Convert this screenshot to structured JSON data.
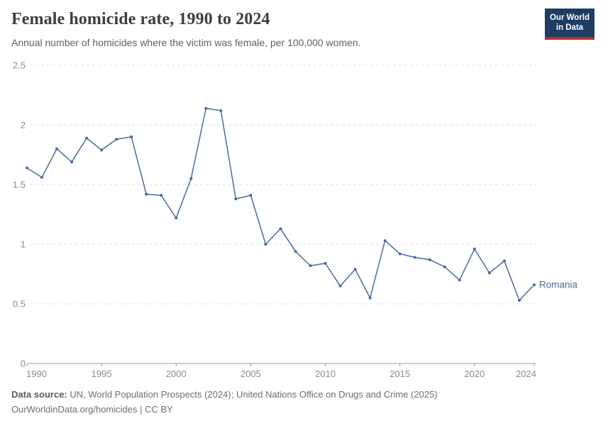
{
  "header": {
    "title": "Female homicide rate, 1990 to 2024",
    "subtitle": "Annual number of homicides where the victim was female, per 100,000 women.",
    "logo": {
      "line1": "Our World",
      "line2": "in Data",
      "bg_color": "#1d3d63",
      "bar_color": "#c8252c"
    }
  },
  "chart_data": {
    "type": "line",
    "title": "Female homicide rate, 1990 to 2024",
    "xlabel": "",
    "ylabel": "",
    "xlim": [
      1990,
      2024
    ],
    "ylim": [
      0,
      2.5
    ],
    "xticks": [
      1990,
      1995,
      2000,
      2005,
      2010,
      2015,
      2020,
      2024
    ],
    "yticks": [
      0,
      0.5,
      1,
      1.5,
      2,
      2.5
    ],
    "grid": "horizontal-dashed",
    "legend_position": "end-of-line-label",
    "series": [
      {
        "name": "Romania",
        "color": "#4C6A9C",
        "x": [
          1990,
          1991,
          1992,
          1993,
          1994,
          1995,
          1996,
          1997,
          1998,
          1999,
          2000,
          2001,
          2002,
          2003,
          2004,
          2005,
          2006,
          2007,
          2008,
          2009,
          2010,
          2011,
          2012,
          2013,
          2014,
          2015,
          2016,
          2017,
          2018,
          2019,
          2020,
          2021,
          2022,
          2023,
          2024
        ],
        "values": [
          1.64,
          1.56,
          1.8,
          1.69,
          1.89,
          1.79,
          1.88,
          1.9,
          1.42,
          1.41,
          1.22,
          1.55,
          2.14,
          2.12,
          1.38,
          1.41,
          1.0,
          1.13,
          0.94,
          0.82,
          0.84,
          0.65,
          0.79,
          0.55,
          1.03,
          0.92,
          0.89,
          0.87,
          0.81,
          0.7,
          0.96,
          0.76,
          0.86,
          0.53,
          0.66
        ]
      }
    ]
  },
  "footer": {
    "source_label": "Data source:",
    "source_text": " UN, World Population Prospects (2024); United Nations Office on Drugs and Crime (2025)",
    "link_line": "OurWorldinData.org/homicides | CC BY"
  }
}
